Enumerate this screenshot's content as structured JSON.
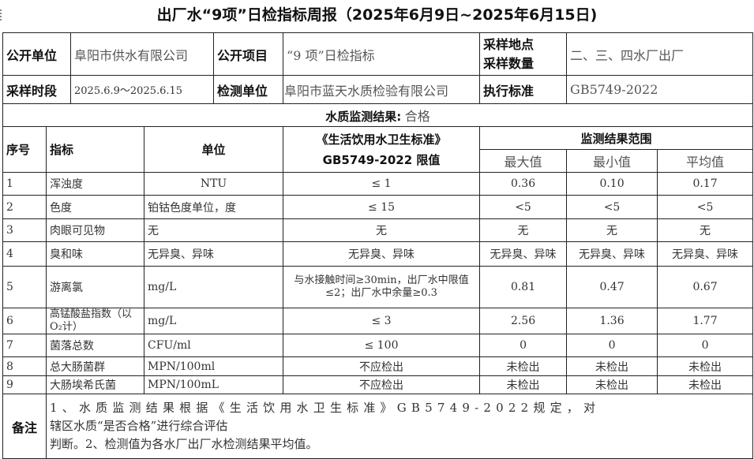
{
  "title": "出厂水“9项”日检指标周报（2025年6月9日~2025年6月15日)",
  "info": {
    "publisher_label": "公开单位",
    "publisher": "阜阳市供水有限公司",
    "project_label": "公开项目",
    "project": "“9 项”日检指标",
    "site_label_1": "采样地点",
    "site_label_2": "采样数量",
    "site": "二、三、四水厂出厂",
    "period_label": "采样时段",
    "period": "2025.6.9～2025.6.15",
    "lab_label": "检测单位",
    "lab": "阜阳市蓝天水质检验有限公司",
    "standard_label": "执行标准",
    "standard": "GB5749-2022"
  },
  "result": {
    "label": "水质监测结果:",
    "value": "合格"
  },
  "headers": {
    "no": "序号",
    "item": "指标",
    "unit": "单位",
    "limit_1": "《生活饮用水卫生标准》",
    "limit_2": "GB5749-2022 限值",
    "range": "监测结果范围",
    "max": "最大值",
    "min": "最小值",
    "avg": "平均值"
  },
  "rows": [
    {
      "no": "1",
      "item": "浑浊度",
      "unit": "NTU",
      "limit": "≤  1",
      "max": "0.36",
      "min": "0.10",
      "avg": "0.17"
    },
    {
      "no": "2",
      "item": "色度",
      "unit": "铂钴色度单位，度",
      "limit": "≤ 15",
      "max": "<5",
      "min": "<5",
      "avg": "<5"
    },
    {
      "no": "3",
      "item": "肉眼可见物",
      "unit": "无",
      "limit": "无",
      "max": "无",
      "min": "无",
      "avg": "无"
    },
    {
      "no": "4",
      "item": "臭和味",
      "unit": "无异臭、异味",
      "limit": "无异臭、异味",
      "max": "无异臭、异味",
      "min": "无异臭、异味",
      "avg": "无异臭、异味"
    },
    {
      "no": "5",
      "item": "游离氯",
      "unit": "mg/L",
      "limit": "与水接触时间≥30min，出厂水中限值≤2；出厂水中余量≥0.3",
      "max": "0.81",
      "min": "0.47",
      "avg": "0.67"
    },
    {
      "no": "6",
      "item": "高锰酸盐指数（以O₂计）",
      "unit": "mg/L",
      "limit": "≤ 3",
      "max": "2.56",
      "min": "1.36",
      "avg": "1.77"
    },
    {
      "no": "7",
      "item": "菌落总数",
      "unit": "CFU/ml",
      "limit": "≤ 100",
      "max": "0",
      "min": "0",
      "avg": "0"
    },
    {
      "no": "8",
      "item": "总大肠菌群",
      "unit": "MPN/100ml",
      "limit": "不应检出",
      "max": "未检出",
      "min": "未检出",
      "avg": "未检出"
    },
    {
      "no": "9",
      "item": "大肠埃希氏菌",
      "unit": "MPN/100mL",
      "limit": "不应检出",
      "max": "未检出",
      "min": "未检出",
      "avg": "未检出"
    }
  ],
  "notes": {
    "label": "备注",
    "line1": "1、水质监测结果根据《生活饮用水卫生标准》GB5749-2022规定，对",
    "line2": "辖区水质“是否合格”进行综合评估",
    "line3": "判断。2、检测值为各水厂出厂水检测结果平均值。"
  }
}
